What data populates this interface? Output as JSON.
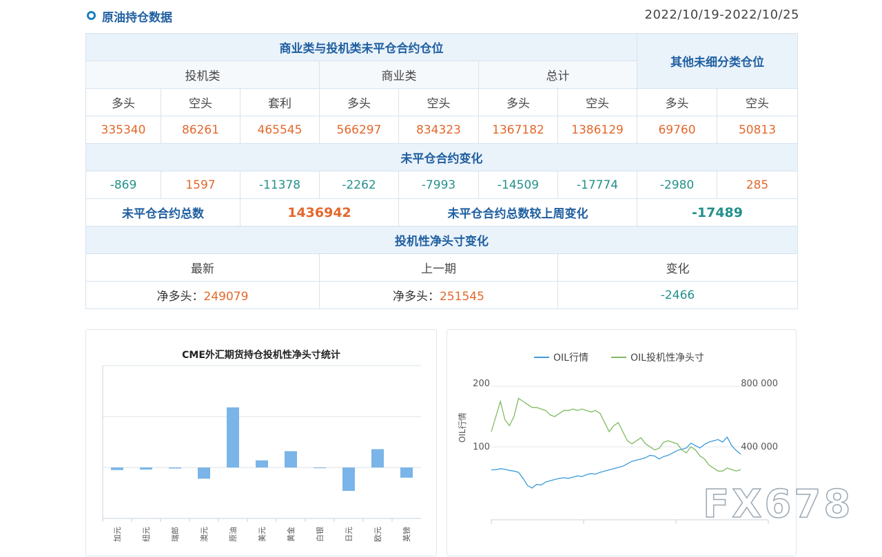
{
  "header": {
    "title": "原油持仓数据",
    "date_range": "2022/10/19-2022/10/25"
  },
  "table": {
    "group_title": "商业类与投机类未平仓合约仓位",
    "other_title": "其他未细分类仓位",
    "spec_title": "投机类",
    "comm_title": "商业类",
    "total_title": "总计",
    "col_labels": [
      "多头",
      "空头",
      "套利",
      "多头",
      "空头",
      "多头",
      "空头",
      "多头",
      "空头"
    ],
    "positions": [
      "335340",
      "86261",
      "465545",
      "566297",
      "834323",
      "1367182",
      "1386129",
      "69760",
      "50813"
    ],
    "change_title": "未平仓合约变化",
    "changes": [
      "-869",
      "1597",
      "-11378",
      "-2262",
      "-7993",
      "-14509",
      "-17774",
      "-2980",
      "285"
    ],
    "oi_total_label": "未平仓合约总数",
    "oi_total_value": "1436942",
    "oi_week_change_label": "未平仓合约总数较上周变化",
    "oi_week_change_value": "-17489",
    "net_title": "投机性净头寸变化",
    "net_latest_label": "最新",
    "net_prev_label": "上一期",
    "net_change_label": "变化",
    "net_latest_prefix": "净多头：",
    "net_latest_value": "249079",
    "net_prev_prefix": "净多头：",
    "net_prev_value": "251545",
    "net_change_value": "-2466"
  },
  "watermark": "FX678",
  "chart_data": [
    {
      "type": "bar",
      "title": "CME外汇期货持仓投机性净头寸统计",
      "categories": [
        "加元",
        "纽元",
        "瑞郎",
        "澳元",
        "原油",
        "美元",
        "黄金",
        "白银",
        "日元",
        "欧元",
        "英镑"
      ],
      "values": [
        -5,
        -4,
        -2,
        -22,
        118,
        14,
        32,
        0,
        -46,
        36,
        -20
      ],
      "ylim": [
        -100,
        200
      ],
      "grid": true,
      "color": "#7ab4e8"
    },
    {
      "type": "line",
      "legend": "top",
      "ylabel": "OIL行情",
      "y_left_ticks": [
        "200",
        "100"
      ],
      "y_right_ticks": [
        "800 000",
        "400 000"
      ],
      "series": [
        {
          "name": "OIL行情",
          "axis": "left",
          "color": "#3b9ad9",
          "values": [
            62,
            62,
            64,
            63,
            61,
            60,
            58,
            48,
            36,
            32,
            38,
            37,
            42,
            44,
            46,
            48,
            49,
            48,
            50,
            52,
            51,
            54,
            56,
            55,
            58,
            60,
            62,
            64,
            66,
            68,
            72,
            76,
            78,
            80,
            82,
            86,
            85,
            80,
            84,
            86,
            90,
            94,
            96,
            98,
            106,
            102,
            98,
            104,
            108,
            110,
            112,
            108,
            116,
            102,
            94,
            88
          ]
        },
        {
          "name": "OIL投机性净头寸",
          "axis": "right",
          "color": "#7fba5f",
          "values": [
            500000,
            600000,
            700000,
            580000,
            540000,
            600000,
            720000,
            700000,
            680000,
            660000,
            660000,
            650000,
            640000,
            610000,
            600000,
            620000,
            640000,
            640000,
            650000,
            640000,
            650000,
            640000,
            630000,
            640000,
            620000,
            560000,
            500000,
            540000,
            560000,
            500000,
            440000,
            420000,
            440000,
            460000,
            420000,
            400000,
            380000,
            390000,
            430000,
            440000,
            430000,
            420000,
            380000,
            360000,
            400000,
            380000,
            340000,
            320000,
            280000,
            260000,
            240000,
            240000,
            260000,
            250000,
            240000,
            250000
          ]
        }
      ]
    }
  ]
}
